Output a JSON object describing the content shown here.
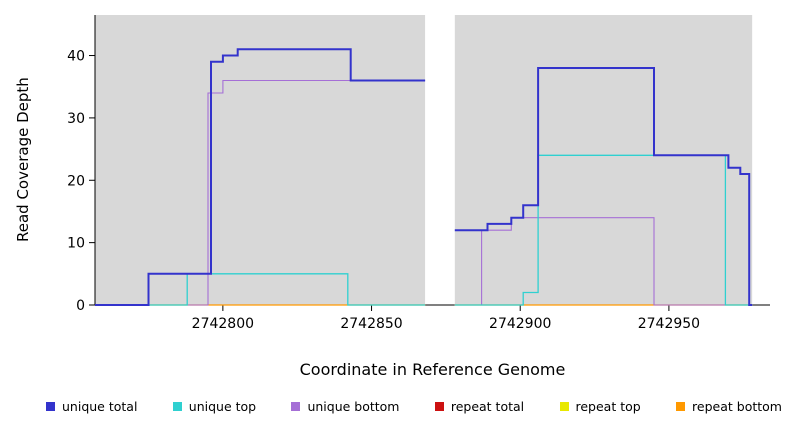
{
  "chart_data": {
    "type": "line",
    "subtype": "step-coverage",
    "title": "",
    "xlabel": "Coordinate in Reference Genome",
    "ylabel": "Read Coverage Depth",
    "xlim": [
      2742757,
      2742984
    ],
    "ylim": [
      0,
      46.5
    ],
    "xticks": [
      2742800,
      2742850,
      2742900,
      2742950
    ],
    "yticks": [
      0,
      10,
      20,
      30,
      40
    ],
    "grid": false,
    "legend_position": "bottom",
    "background": "#ffffff",
    "shaded_region_color": "#d8d8d8",
    "shaded_regions": [
      {
        "x0": 2742757,
        "x1": 2742868
      },
      {
        "x0": 2742878,
        "x1": 2742978
      }
    ],
    "draw_order": [
      3,
      4,
      5,
      2,
      1,
      0
    ],
    "series": [
      {
        "name": "unique total",
        "color": "#3333cc",
        "lw": 2,
        "segments": [
          [
            [
              2742757,
              0
            ],
            [
              2742775,
              0
            ],
            [
              2742775,
              5
            ],
            [
              2742796,
              5
            ],
            [
              2742796,
              39
            ],
            [
              2742800,
              39
            ],
            [
              2742800,
              40
            ],
            [
              2742805,
              40
            ],
            [
              2742805,
              41
            ],
            [
              2742843,
              41
            ],
            [
              2742843,
              36
            ],
            [
              2742868,
              36
            ]
          ],
          [
            [
              2742878,
              12
            ],
            [
              2742889,
              12
            ],
            [
              2742889,
              13
            ],
            [
              2742897,
              13
            ],
            [
              2742897,
              14
            ],
            [
              2742901,
              14
            ],
            [
              2742901,
              16
            ],
            [
              2742906,
              16
            ],
            [
              2742906,
              38
            ],
            [
              2742945,
              38
            ],
            [
              2742945,
              24
            ],
            [
              2742970,
              24
            ],
            [
              2742970,
              22
            ],
            [
              2742974,
              22
            ],
            [
              2742974,
              21
            ],
            [
              2742977,
              21
            ],
            [
              2742977,
              0
            ],
            [
              2742978,
              0
            ]
          ]
        ]
      },
      {
        "name": "unique top",
        "color": "#2fd0d0",
        "lw": 1.3,
        "segments": [
          [
            [
              2742757,
              0
            ],
            [
              2742788,
              0
            ],
            [
              2742788,
              5
            ],
            [
              2742842,
              5
            ],
            [
              2742842,
              0
            ],
            [
              2742868,
              0
            ]
          ],
          [
            [
              2742878,
              0
            ],
            [
              2742901,
              0
            ],
            [
              2742901,
              2
            ],
            [
              2742906,
              2
            ],
            [
              2742906,
              24
            ],
            [
              2742969,
              24
            ],
            [
              2742969,
              0
            ],
            [
              2742978,
              0
            ]
          ]
        ]
      },
      {
        "name": "unique bottom",
        "color": "#a56fd6",
        "lw": 1.1,
        "segments": [
          [
            [
              2742757,
              0
            ],
            [
              2742795,
              0
            ],
            [
              2742795,
              34
            ],
            [
              2742800,
              34
            ],
            [
              2742800,
              36
            ],
            [
              2742868,
              36
            ]
          ],
          [
            [
              2742878,
              0
            ],
            [
              2742887,
              0
            ],
            [
              2742887,
              12
            ],
            [
              2742897,
              12
            ],
            [
              2742897,
              14
            ],
            [
              2742945,
              14
            ],
            [
              2742945,
              0
            ],
            [
              2742978,
              0
            ]
          ]
        ]
      },
      {
        "name": "repeat total",
        "color": "#cc1111",
        "lw": 1,
        "segments": [
          [
            [
              2742757,
              0
            ],
            [
              2742868,
              0
            ]
          ],
          [
            [
              2742878,
              0
            ],
            [
              2742978,
              0
            ]
          ]
        ]
      },
      {
        "name": "repeat top",
        "color": "#e8e800",
        "lw": 1,
        "segments": [
          [
            [
              2742757,
              0
            ],
            [
              2742868,
              0
            ]
          ],
          [
            [
              2742878,
              0
            ],
            [
              2742978,
              0
            ]
          ]
        ]
      },
      {
        "name": "repeat bottom",
        "color": "#ff9900",
        "lw": 1.3,
        "segments": [
          [
            [
              2742757,
              0
            ],
            [
              2742868,
              0
            ]
          ],
          [
            [
              2742878,
              0
            ],
            [
              2742978,
              0
            ]
          ]
        ]
      }
    ]
  }
}
